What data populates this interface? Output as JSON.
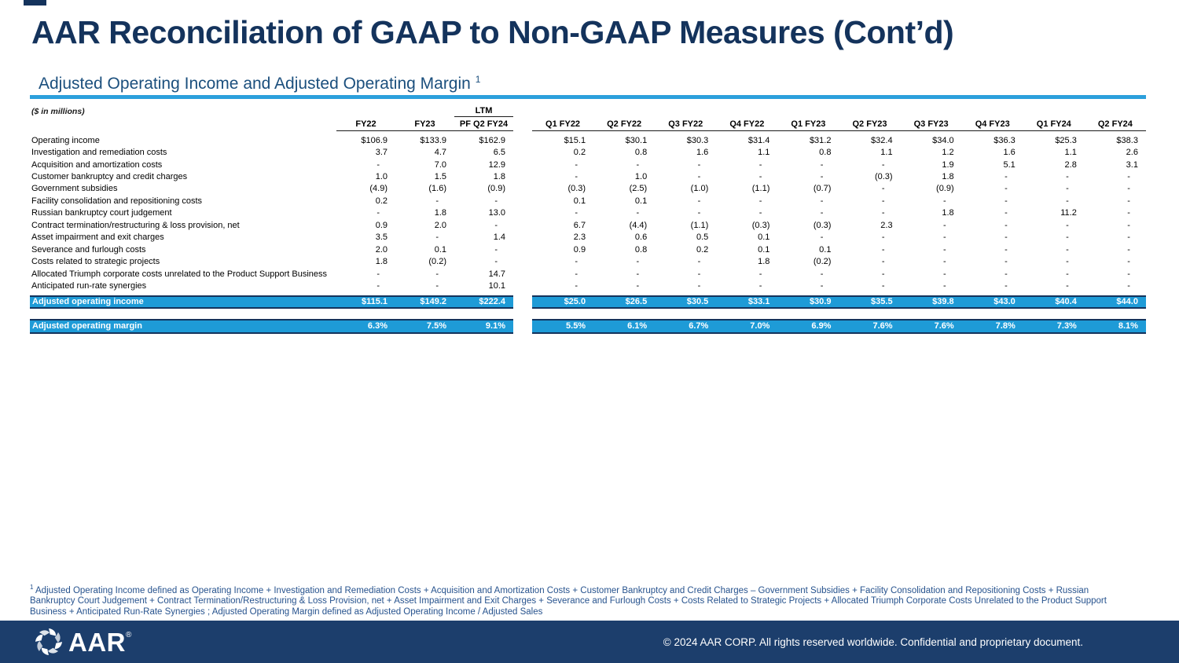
{
  "page": {
    "title": "AAR Reconciliation of GAAP to Non-GAAP Measures (Cont’d)",
    "subtitle": "Adjusted Operating Income and Adjusted Operating Margin",
    "subtitle_superscript": "1"
  },
  "colors": {
    "title_navy": "#14335C",
    "accent_blue": "#2CA0DC",
    "bar_blue": "#1E9BD7",
    "footer_navy": "#1C3E6C",
    "footnote_blue": "#27538E"
  },
  "table": {
    "units_note": "($ in millions)",
    "ltm_label": "LTM",
    "annual_columns": [
      "FY22",
      "FY23",
      "PF Q2 FY24"
    ],
    "quarterly_columns": [
      "Q1 FY22",
      "Q2 FY22",
      "Q3 FY22",
      "Q4 FY22",
      "Q1 FY23",
      "Q2 FY23",
      "Q3 FY23",
      "Q4 FY23",
      "Q1 FY24",
      "Q2 FY24"
    ],
    "rows": [
      {
        "label": "Operating income",
        "annual": [
          "$106.9",
          "$133.9",
          "$162.9"
        ],
        "quarterly": [
          "$15.1",
          "$30.1",
          "$30.3",
          "$31.4",
          "$31.2",
          "$32.4",
          "$34.0",
          "$36.3",
          "$25.3",
          "$38.3"
        ]
      },
      {
        "label": "Investigation and remediation costs",
        "annual": [
          "3.7",
          "4.7",
          "6.5"
        ],
        "quarterly": [
          "0.2",
          "0.8",
          "1.6",
          "1.1",
          "0.8",
          "1.1",
          "1.2",
          "1.6",
          "1.1",
          "2.6"
        ]
      },
      {
        "label": "Acquisition and amortization costs",
        "annual": [
          "-",
          "7.0",
          "12.9"
        ],
        "quarterly": [
          "-",
          "-",
          "-",
          "-",
          "-",
          "-",
          "1.9",
          "5.1",
          "2.8",
          "3.1"
        ]
      },
      {
        "label": "Customer bankruptcy and credit charges",
        "annual": [
          "1.0",
          "1.5",
          "1.8"
        ],
        "quarterly": [
          "-",
          "1.0",
          "-",
          "-",
          "-",
          "(0.3)",
          "1.8",
          "-",
          "-",
          "-"
        ]
      },
      {
        "label": "Government subsidies",
        "annual": [
          "(4.9)",
          "(1.6)",
          "(0.9)"
        ],
        "quarterly": [
          "(0.3)",
          "(2.5)",
          "(1.0)",
          "(1.1)",
          "(0.7)",
          "-",
          "(0.9)",
          "-",
          "-",
          "-"
        ]
      },
      {
        "label": "Facility consolidation and repositioning costs",
        "annual": [
          "0.2",
          "-",
          "-"
        ],
        "quarterly": [
          "0.1",
          "0.1",
          "-",
          "-",
          "-",
          "-",
          "-",
          "-",
          "-",
          "-"
        ]
      },
      {
        "label": "Russian bankruptcy court  judgement",
        "annual": [
          "-",
          "1.8",
          "13.0"
        ],
        "quarterly": [
          "-",
          "-",
          "-",
          "-",
          "-",
          "-",
          "1.8",
          "-",
          "11.2",
          "-"
        ]
      },
      {
        "label": "Contract termination/restructuring & loss provision, net",
        "annual": [
          "0.9",
          "2.0",
          "-"
        ],
        "quarterly": [
          "6.7",
          "(4.4)",
          "(1.1)",
          "(0.3)",
          "(0.3)",
          "2.3",
          "-",
          "-",
          "-",
          "-"
        ]
      },
      {
        "label": "Asset impairment and exit charges",
        "annual": [
          "3.5",
          "-",
          "1.4"
        ],
        "quarterly": [
          "2.3",
          "0.6",
          "0.5",
          "0.1",
          "-",
          "-",
          "-",
          "-",
          "-",
          "-"
        ]
      },
      {
        "label": "Severance and furlough costs",
        "annual": [
          "2.0",
          "0.1",
          "-"
        ],
        "quarterly": [
          "0.9",
          "0.8",
          "0.2",
          "0.1",
          "0.1",
          "-",
          "-",
          "-",
          "-",
          "-"
        ]
      },
      {
        "label": "Costs related to strategic projects",
        "annual": [
          "1.8",
          "(0.2)",
          "-"
        ],
        "quarterly": [
          "-",
          "-",
          "-",
          "1.8",
          "(0.2)",
          "-",
          "-",
          "-",
          "-",
          "-"
        ]
      },
      {
        "label": "Allocated Triumph corporate costs unrelated to the Product Support Business",
        "annual": [
          "-",
          "-",
          "14.7"
        ],
        "quarterly": [
          "-",
          "-",
          "-",
          "-",
          "-",
          "-",
          "-",
          "-",
          "-",
          "-"
        ]
      },
      {
        "label": "Anticipated run-rate synergies",
        "annual": [
          "-",
          "-",
          "10.1"
        ],
        "quarterly": [
          "-",
          "-",
          "-",
          "-",
          "-",
          "-",
          "-",
          "-",
          "-",
          "-"
        ]
      }
    ],
    "total_row": {
      "label": "Adjusted operating income",
      "annual": [
        "$115.1",
        "$149.2",
        "$222.4"
      ],
      "quarterly": [
        "$25.0",
        "$26.5",
        "$30.5",
        "$33.1",
        "$30.9",
        "$35.5",
        "$39.8",
        "$43.0",
        "$40.4",
        "$44.0"
      ]
    },
    "margin_row": {
      "label": "Adjusted operating margin",
      "annual": [
        "6.3%",
        "7.5%",
        "9.1%"
      ],
      "quarterly": [
        "5.5%",
        "6.1%",
        "6.7%",
        "7.0%",
        "6.9%",
        "7.6%",
        "7.6%",
        "7.8%",
        "7.3%",
        "8.1%"
      ]
    }
  },
  "footnote": {
    "marker": "1",
    "text": "Adjusted Operating Income defined as Operating Income + Investigation and Remediation Costs + Acquisition and Amortization Costs + Customer Bankruptcy and Credit Charges – Government Subsidies + Facility Consolidation and Repositioning Costs + Russian Bankruptcy Court Judgement + Contract Termination/Restructuring & Loss Provision, net + Asset Impairment and Exit Charges + Severance and Furlough Costs + Costs Related to Strategic Projects + Allocated Triumph Corporate Costs Unrelated to the Product Support Business + Anticipated Run-Rate Synergies ; Adjusted Operating Margin defined as Adjusted Operating Income / Adjusted Sales"
  },
  "footer": {
    "logo_text": "AAR",
    "logo_reg": "®",
    "copyright": "© 2024 AAR CORP. All rights reserved worldwide. Confidential and proprietary document."
  }
}
